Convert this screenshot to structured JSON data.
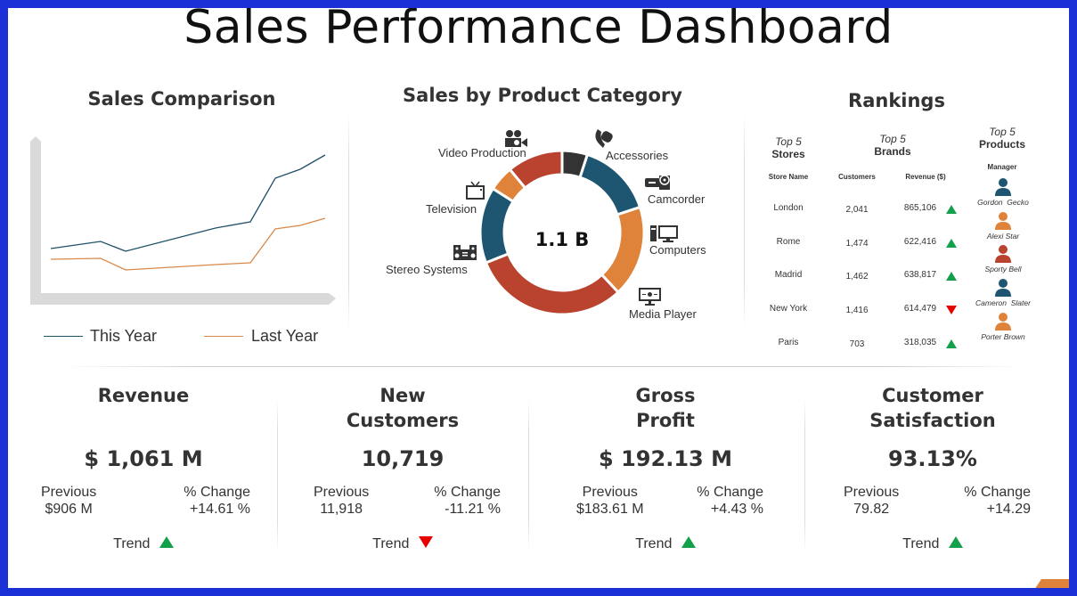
{
  "title": "Sales Performance Dashboard",
  "colors": {
    "border": "#1a2fd6",
    "this_year": "#1f5068",
    "last_year": "#d8894a",
    "dark": "#333333",
    "blue": "#1e5570",
    "orange": "#e0833a",
    "red": "#b9432e",
    "up": "#12a04a",
    "down": "#e60000"
  },
  "sales_comparison": {
    "title": "Sales Comparison",
    "legend": [
      {
        "label": "This Year"
      },
      {
        "label": "Last Year"
      }
    ]
  },
  "category": {
    "title": "Sales by Product Category",
    "center_label": "1.1 B"
  },
  "chart_data": [
    {
      "type": "line",
      "title": "Sales Comparison",
      "x": [
        0,
        2,
        3,
        6.6,
        8,
        9,
        10,
        11
      ],
      "series": [
        {
          "name": "This Year",
          "values": [
            60,
            68,
            57,
            83,
            90,
            139,
            149,
            165
          ]
        },
        {
          "name": "Last Year",
          "values": [
            48,
            49,
            36,
            42,
            44,
            82,
            86,
            94
          ]
        }
      ],
      "grid": false,
      "legend": "bottom"
    },
    {
      "type": "pie",
      "title": "Sales by Product Category",
      "donut": true,
      "categories": [
        "Accessories",
        "Camcorder",
        "Computers",
        "Media Player",
        "Stereo Systems",
        "Television",
        "Video Production"
      ],
      "values": [
        5,
        15,
        18,
        31,
        15,
        5,
        11
      ],
      "slice_colors": [
        "#333333",
        "#1e5570",
        "#e0833a",
        "#b9432e",
        "#1e5570",
        "#e0833a",
        "#b9432e"
      ],
      "icons": [
        "watch-icon",
        "camcorder-icon",
        "computer-icon",
        "media-player-icon",
        "stereo-icon",
        "television-icon",
        "movie-camera-icon"
      ]
    }
  ],
  "rankings": {
    "title": "Rankings",
    "groups": [
      {
        "top": "Top 5",
        "name": "Stores"
      },
      {
        "top": "Top 5",
        "name": "Brands"
      },
      {
        "top": "Top 5",
        "name": "Products"
      }
    ],
    "columns": [
      "Store Name",
      "Customers",
      "Revenue ($)",
      "Manager"
    ],
    "rows": [
      {
        "store": "London",
        "customers": "2,041",
        "revenue": "865,106",
        "trend": "up",
        "manager": "Gordon  Gecko",
        "avatar_color": "#1e5570"
      },
      {
        "store": "Rome",
        "customers": "1,474",
        "revenue": "622,416",
        "trend": "up",
        "manager": "Alexi Star",
        "avatar_color": "#e0833a"
      },
      {
        "store": "Madrid",
        "customers": "1,462",
        "revenue": "638,817",
        "trend": "up",
        "manager": "Sporty Bell",
        "avatar_color": "#b9432e"
      },
      {
        "store": "New York",
        "customers": "1,416",
        "revenue": "614,479",
        "trend": "down",
        "manager": "Cameron  Slater",
        "avatar_color": "#1e5570"
      },
      {
        "store": "Paris",
        "customers": "703",
        "revenue": "318,035",
        "trend": "up",
        "manager": "Porter Brown",
        "avatar_color": "#e0833a"
      }
    ]
  },
  "kpis": [
    {
      "title_line1": "Revenue",
      "title_line2": "",
      "value": "$ 1,061 M",
      "previous_label": "Previous",
      "previous": "$906 M",
      "change_label": "% Change",
      "change": "+14.61 %",
      "trend_label": "Trend",
      "trend": "up"
    },
    {
      "title_line1": "New",
      "title_line2": "Customers",
      "value": "10,719",
      "previous_label": "Previous",
      "previous": "11,918",
      "change_label": "% Change",
      "change": "-11.21 %",
      "trend_label": "Trend",
      "trend": "down"
    },
    {
      "title_line1": "Gross",
      "title_line2": "Profit",
      "value": "$ 192.13 M",
      "previous_label": "Previous",
      "previous": "$183.61 M",
      "change_label": "% Change",
      "change": "+4.43 %",
      "trend_label": "Trend",
      "trend": "up"
    },
    {
      "title_line1": "Customer",
      "title_line2": "Satisfaction",
      "value": "93.13%",
      "previous_label": "Previous",
      "previous": "79.82",
      "change_label": "% Change",
      "change": "+14.29",
      "trend_label": "Trend",
      "trend": "up"
    }
  ]
}
